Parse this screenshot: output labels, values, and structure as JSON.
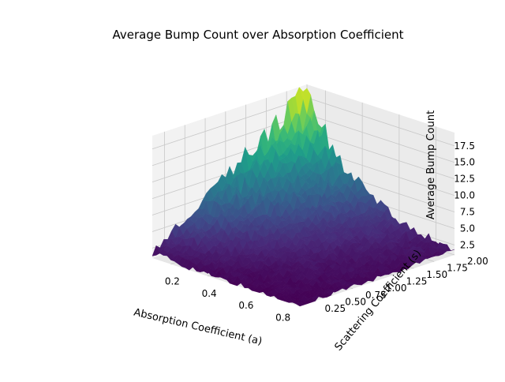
{
  "chart_data": {
    "type": "surface3d",
    "title": "Average Bump Count over Absorption Coefficient",
    "xlabel": "Absorption Coefficient (a)",
    "ylabel": "Scattering Coefficient (s)",
    "zlabel": "Average Bump Count",
    "x_ticks": [
      "0.2",
      "0.4",
      "0.6",
      "0.8"
    ],
    "y_ticks": [
      "0.25",
      "0.50",
      "0.75",
      "1.00",
      "1.25",
      "1.50",
      "1.75",
      "2.00"
    ],
    "z_ticks": [
      "2.5",
      "5.0",
      "7.5",
      "10.0",
      "12.5",
      "15.0",
      "17.5"
    ],
    "xlim": [
      0.1,
      0.9
    ],
    "ylim": [
      0.1,
      2.0
    ],
    "zlim": [
      1.0,
      19.5
    ],
    "colormap": "viridis",
    "grid": true,
    "surface_samples": {
      "description_free": true,
      "points": [
        {
          "a": 0.1,
          "s": 2.0,
          "z": 19.0
        },
        {
          "a": 0.1,
          "s": 1.5,
          "z": 14.5
        },
        {
          "a": 0.1,
          "s": 1.0,
          "z": 9.5
        },
        {
          "a": 0.1,
          "s": 0.5,
          "z": 5.5
        },
        {
          "a": 0.1,
          "s": 0.1,
          "z": 2.0
        },
        {
          "a": 0.5,
          "s": 2.0,
          "z": 8.0
        },
        {
          "a": 0.5,
          "s": 1.0,
          "z": 4.5
        },
        {
          "a": 0.5,
          "s": 0.1,
          "z": 1.5
        },
        {
          "a": 0.9,
          "s": 2.0,
          "z": 3.0
        },
        {
          "a": 0.9,
          "s": 1.0,
          "z": 2.0
        },
        {
          "a": 0.9,
          "s": 0.1,
          "z": 1.0
        }
      ]
    }
  }
}
